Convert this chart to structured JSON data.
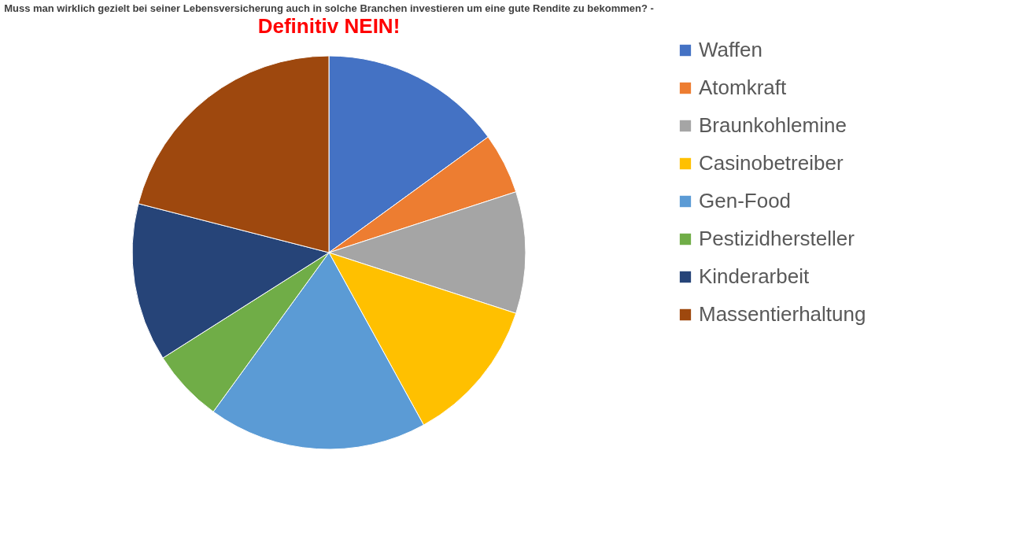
{
  "chart_data": {
    "type": "pie",
    "title": "Muss man wirklich gezielt bei seiner Lebensversicherung auch in solche Branchen investieren um eine gute Rendite zu bekommen? -",
    "subtitle": "Definitiv NEIN!",
    "categories": [
      "Waffen",
      "Atomkraft",
      "Braunkohlemine",
      "Casinobetreiber",
      "Gen-Food",
      "Pestizidhersteller",
      "Kinderarbeit",
      "Massentierhaltung"
    ],
    "values": [
      15,
      5,
      10,
      12,
      18,
      6,
      13,
      21
    ],
    "colors": [
      "#4472c4",
      "#ed7d31",
      "#a5a5a5",
      "#ffc000",
      "#5b9bd5",
      "#70ad47",
      "#264478",
      "#9e480e"
    ],
    "legend": "right"
  }
}
